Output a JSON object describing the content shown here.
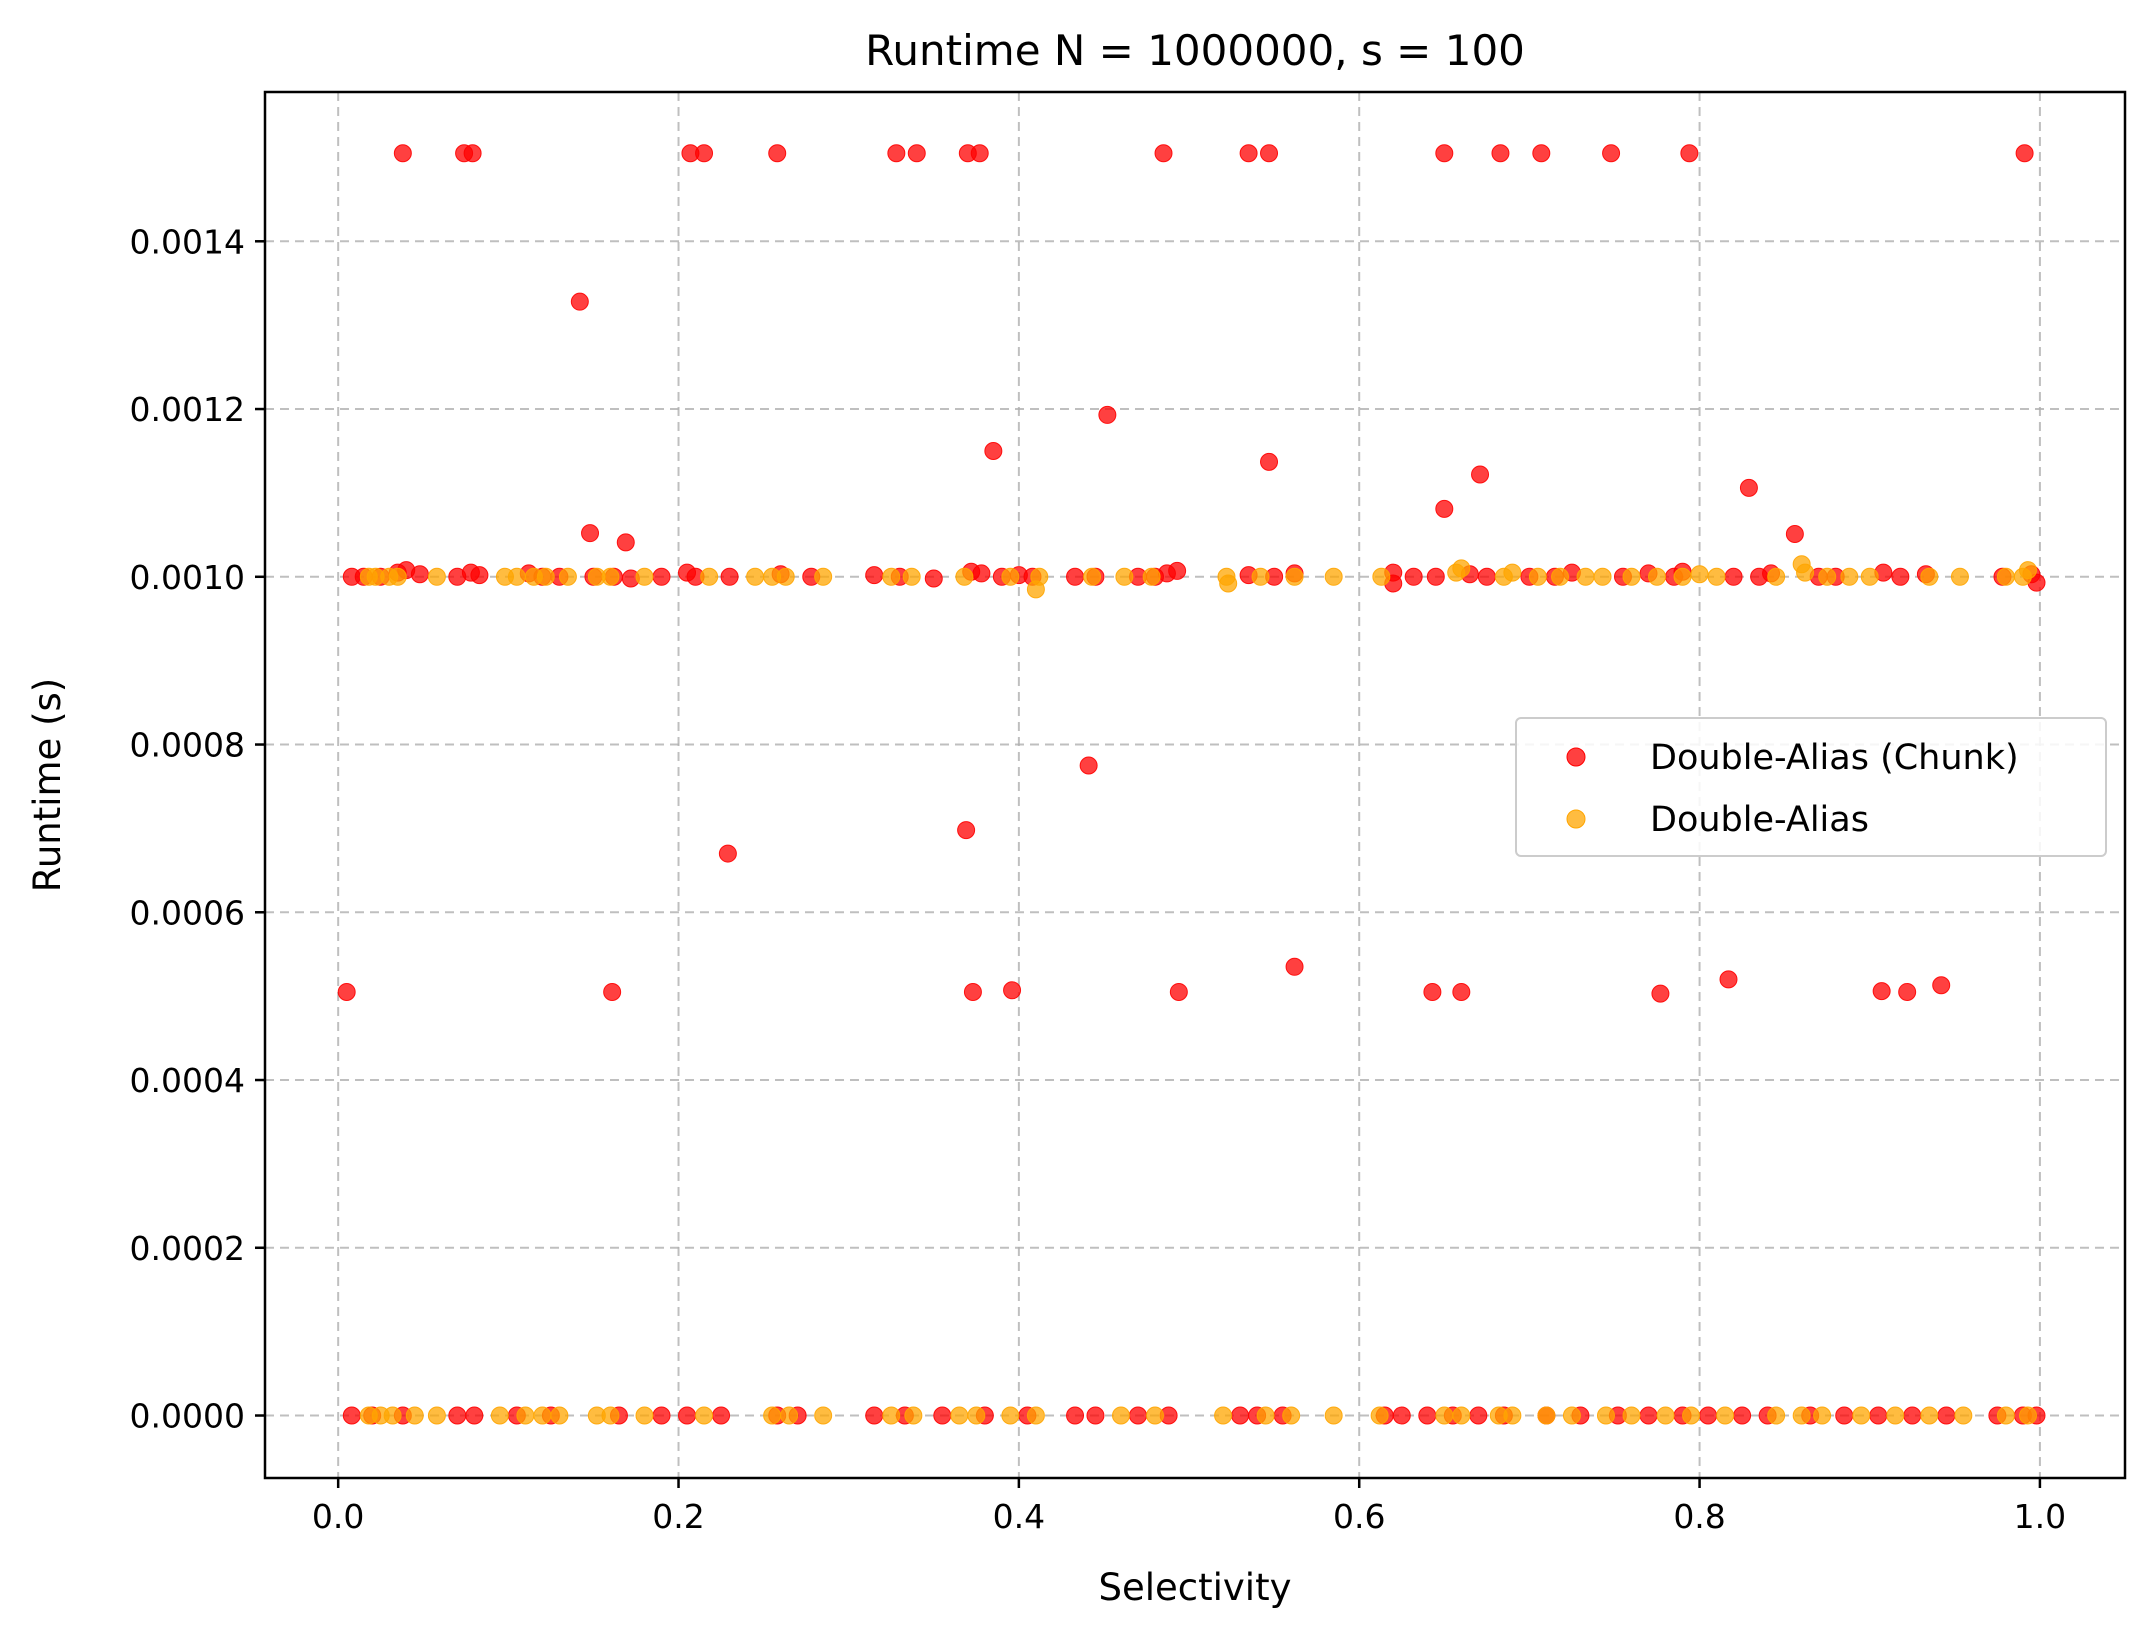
{
  "chart_data": {
    "type": "scatter",
    "title": "Runtime N = 1000000, s = 100",
    "xlabel": "Selectivity",
    "ylabel": "Runtime (s)",
    "xlim": [
      -0.043,
      1.05
    ],
    "ylim": [
      -7.45e-05,
      0.001578
    ],
    "xticks": [
      0.0,
      0.2,
      0.4,
      0.6,
      0.8,
      1.0
    ],
    "xtick_labels": [
      "0.0",
      "0.2",
      "0.4",
      "0.6",
      "0.8",
      "1.0"
    ],
    "yticks": [
      0.0,
      0.0002,
      0.0004,
      0.0006,
      0.0008,
      0.001,
      0.0012,
      0.0014
    ],
    "ytick_labels": [
      "0.0000",
      "0.0002",
      "0.0004",
      "0.0006",
      "0.0008",
      "0.0010",
      "0.0012",
      "0.0014"
    ],
    "grid": true,
    "legend_position": "center-right",
    "series": [
      {
        "name": "Double-Alias (Chunk)",
        "color": "#ff0000",
        "points": [
          [
            0.038,
            0.001505
          ],
          [
            0.074,
            0.001505
          ],
          [
            0.079,
            0.001505
          ],
          [
            0.207,
            0.001505
          ],
          [
            0.215,
            0.001505
          ],
          [
            0.258,
            0.001505
          ],
          [
            0.328,
            0.001505
          ],
          [
            0.34,
            0.001505
          ],
          [
            0.37,
            0.001505
          ],
          [
            0.377,
            0.001505
          ],
          [
            0.485,
            0.001505
          ],
          [
            0.535,
            0.001505
          ],
          [
            0.547,
            0.001505
          ],
          [
            0.65,
            0.001505
          ],
          [
            0.683,
            0.001505
          ],
          [
            0.707,
            0.001505
          ],
          [
            0.748,
            0.001505
          ],
          [
            0.794,
            0.001505
          ],
          [
            0.991,
            0.001505
          ],
          [
            0.142,
            0.001328
          ],
          [
            0.452,
            0.001193
          ],
          [
            0.385,
            0.00115
          ],
          [
            0.547,
            0.001137
          ],
          [
            0.671,
            0.001122
          ],
          [
            0.829,
            0.001106
          ],
          [
            0.65,
            0.001081
          ],
          [
            0.148,
            0.001052
          ],
          [
            0.169,
            0.001041
          ],
          [
            0.856,
            0.001051
          ],
          [
            0.441,
            0.000775
          ],
          [
            0.369,
            0.000698
          ],
          [
            0.229,
            0.00067
          ],
          [
            0.005,
            0.000505
          ],
          [
            0.161,
            0.000505
          ],
          [
            0.373,
            0.000505
          ],
          [
            0.396,
            0.000507
          ],
          [
            0.494,
            0.000505
          ],
          [
            0.562,
            0.000535
          ],
          [
            0.643,
            0.000505
          ],
          [
            0.66,
            0.000505
          ],
          [
            0.777,
            0.000503
          ],
          [
            0.817,
            0.00052
          ],
          [
            0.907,
            0.000506
          ],
          [
            0.922,
            0.000505
          ],
          [
            0.942,
            0.000513
          ],
          [
            0.008,
            0.001
          ],
          [
            0.015,
            0.001
          ],
          [
            0.025,
            0.001
          ],
          [
            0.035,
            0.001005
          ],
          [
            0.04,
            0.001008
          ],
          [
            0.048,
            0.001003
          ],
          [
            0.07,
            0.001
          ],
          [
            0.078,
            0.001005
          ],
          [
            0.083,
            0.001002
          ],
          [
            0.112,
            0.001004
          ],
          [
            0.12,
            0.001
          ],
          [
            0.13,
            0.001
          ],
          [
            0.15,
            0.001
          ],
          [
            0.162,
            0.001
          ],
          [
            0.172,
            0.000998
          ],
          [
            0.19,
            0.001
          ],
          [
            0.205,
            0.001005
          ],
          [
            0.21,
            0.001
          ],
          [
            0.23,
            0.001
          ],
          [
            0.26,
            0.001003
          ],
          [
            0.278,
            0.001
          ],
          [
            0.315,
            0.001002
          ],
          [
            0.33,
            0.001
          ],
          [
            0.35,
            0.000998
          ],
          [
            0.372,
            0.001006
          ],
          [
            0.378,
            0.001004
          ],
          [
            0.39,
            0.001
          ],
          [
            0.4,
            0.001002
          ],
          [
            0.408,
            0.001
          ],
          [
            0.433,
            0.001
          ],
          [
            0.445,
            0.001
          ],
          [
            0.47,
            0.001
          ],
          [
            0.48,
            0.001
          ],
          [
            0.487,
            0.001004
          ],
          [
            0.493,
            0.001007
          ],
          [
            0.535,
            0.001002
          ],
          [
            0.55,
            0.001
          ],
          [
            0.562,
            0.001004
          ],
          [
            0.62,
            0.001005
          ],
          [
            0.632,
            0.001
          ],
          [
            0.645,
            0.001
          ],
          [
            0.665,
            0.001003
          ],
          [
            0.675,
            0.001
          ],
          [
            0.7,
            0.001
          ],
          [
            0.715,
            0.001
          ],
          [
            0.725,
            0.001005
          ],
          [
            0.755,
            0.001
          ],
          [
            0.77,
            0.001004
          ],
          [
            0.785,
            0.001
          ],
          [
            0.79,
            0.001006
          ],
          [
            0.82,
            0.001
          ],
          [
            0.835,
            0.001
          ],
          [
            0.842,
            0.001004
          ],
          [
            0.87,
            0.001
          ],
          [
            0.88,
            0.001
          ],
          [
            0.908,
            0.001005
          ],
          [
            0.918,
            0.001
          ],
          [
            0.933,
            0.001003
          ],
          [
            0.978,
            0.001
          ],
          [
            0.995,
            0.001003
          ],
          [
            0.998,
            0.000993
          ],
          [
            0.62,
            0.000992
          ],
          [
            0.008,
            0.0
          ],
          [
            0.02,
            0.0
          ],
          [
            0.038,
            0.0
          ],
          [
            0.07,
            0.0
          ],
          [
            0.08,
            0.0
          ],
          [
            0.105,
            0.0
          ],
          [
            0.125,
            0.0
          ],
          [
            0.165,
            0.0
          ],
          [
            0.19,
            0.0
          ],
          [
            0.205,
            0.0
          ],
          [
            0.225,
            0.0
          ],
          [
            0.258,
            0.0
          ],
          [
            0.27,
            0.0
          ],
          [
            0.315,
            0.0
          ],
          [
            0.333,
            0.0
          ],
          [
            0.355,
            0.0
          ],
          [
            0.38,
            0.0
          ],
          [
            0.405,
            0.0
          ],
          [
            0.433,
            0.0
          ],
          [
            0.445,
            0.0
          ],
          [
            0.47,
            0.0
          ],
          [
            0.488,
            0.0
          ],
          [
            0.53,
            0.0
          ],
          [
            0.54,
            0.0
          ],
          [
            0.555,
            0.0
          ],
          [
            0.615,
            0.0
          ],
          [
            0.625,
            0.0
          ],
          [
            0.64,
            0.0
          ],
          [
            0.655,
            0.0
          ],
          [
            0.67,
            0.0
          ],
          [
            0.685,
            0.0
          ],
          [
            0.71,
            0.0
          ],
          [
            0.73,
            0.0
          ],
          [
            0.752,
            0.0
          ],
          [
            0.77,
            0.0
          ],
          [
            0.79,
            0.0
          ],
          [
            0.805,
            0.0
          ],
          [
            0.825,
            0.0
          ],
          [
            0.84,
            0.0
          ],
          [
            0.865,
            0.0
          ],
          [
            0.885,
            0.0
          ],
          [
            0.905,
            0.0
          ],
          [
            0.925,
            0.0
          ],
          [
            0.945,
            0.0
          ],
          [
            0.975,
            0.0
          ],
          [
            0.99,
            0.0
          ],
          [
            0.998,
            0.0
          ]
        ]
      },
      {
        "name": "Double-Alias",
        "color": "#ffa500",
        "points": [
          [
            0.018,
            0.001
          ],
          [
            0.022,
            0.001
          ],
          [
            0.03,
            0.001
          ],
          [
            0.035,
            0.001
          ],
          [
            0.058,
            0.001
          ],
          [
            0.098,
            0.001
          ],
          [
            0.105,
            0.001
          ],
          [
            0.115,
            0.001
          ],
          [
            0.122,
            0.001
          ],
          [
            0.135,
            0.001
          ],
          [
            0.152,
            0.001
          ],
          [
            0.16,
            0.001
          ],
          [
            0.18,
            0.001
          ],
          [
            0.218,
            0.001
          ],
          [
            0.245,
            0.001
          ],
          [
            0.255,
            0.001
          ],
          [
            0.263,
            0.001
          ],
          [
            0.285,
            0.001
          ],
          [
            0.325,
            0.001
          ],
          [
            0.337,
            0.001
          ],
          [
            0.368,
            0.001
          ],
          [
            0.395,
            0.001
          ],
          [
            0.41,
            0.000985
          ],
          [
            0.412,
            0.001
          ],
          [
            0.443,
            0.001
          ],
          [
            0.462,
            0.001
          ],
          [
            0.478,
            0.001
          ],
          [
            0.522,
            0.001
          ],
          [
            0.523,
            0.000992
          ],
          [
            0.542,
            0.001
          ],
          [
            0.562,
            0.001
          ],
          [
            0.585,
            0.001
          ],
          [
            0.613,
            0.001
          ],
          [
            0.657,
            0.001005
          ],
          [
            0.66,
            0.00101
          ],
          [
            0.685,
            0.001
          ],
          [
            0.69,
            0.001005
          ],
          [
            0.705,
            0.001
          ],
          [
            0.718,
            0.001
          ],
          [
            0.733,
            0.001
          ],
          [
            0.743,
            0.001
          ],
          [
            0.76,
            0.001
          ],
          [
            0.775,
            0.001
          ],
          [
            0.79,
            0.001
          ],
          [
            0.8,
            0.001003
          ],
          [
            0.81,
            0.001
          ],
          [
            0.845,
            0.001
          ],
          [
            0.86,
            0.001015
          ],
          [
            0.862,
            0.001005
          ],
          [
            0.875,
            0.001
          ],
          [
            0.888,
            0.001
          ],
          [
            0.9,
            0.001
          ],
          [
            0.935,
            0.001
          ],
          [
            0.953,
            0.001
          ],
          [
            0.98,
            0.001
          ],
          [
            0.99,
            0.001
          ],
          [
            0.993,
            0.001008
          ],
          [
            0.018,
            0.0
          ],
          [
            0.025,
            0.0
          ],
          [
            0.032,
            0.0
          ],
          [
            0.045,
            0.0
          ],
          [
            0.058,
            0.0
          ],
          [
            0.095,
            0.0
          ],
          [
            0.11,
            0.0
          ],
          [
            0.12,
            0.0
          ],
          [
            0.13,
            0.0
          ],
          [
            0.152,
            0.0
          ],
          [
            0.16,
            0.0
          ],
          [
            0.18,
            0.0
          ],
          [
            0.215,
            0.0
          ],
          [
            0.255,
            0.0
          ],
          [
            0.265,
            0.0
          ],
          [
            0.285,
            0.0
          ],
          [
            0.325,
            0.0
          ],
          [
            0.338,
            0.0
          ],
          [
            0.365,
            0.0
          ],
          [
            0.375,
            0.0
          ],
          [
            0.395,
            0.0
          ],
          [
            0.41,
            0.0
          ],
          [
            0.46,
            0.0
          ],
          [
            0.48,
            0.0
          ],
          [
            0.52,
            0.0
          ],
          [
            0.545,
            0.0
          ],
          [
            0.56,
            0.0
          ],
          [
            0.585,
            0.0
          ],
          [
            0.612,
            0.0
          ],
          [
            0.65,
            0.0
          ],
          [
            0.66,
            0.0
          ],
          [
            0.682,
            0.0
          ],
          [
            0.69,
            0.0
          ],
          [
            0.71,
            0.0
          ],
          [
            0.725,
            0.0
          ],
          [
            0.745,
            0.0
          ],
          [
            0.76,
            0.0
          ],
          [
            0.78,
            0.0
          ],
          [
            0.795,
            0.0
          ],
          [
            0.815,
            0.0
          ],
          [
            0.845,
            0.0
          ],
          [
            0.86,
            0.0
          ],
          [
            0.872,
            0.0
          ],
          [
            0.895,
            0.0
          ],
          [
            0.915,
            0.0
          ],
          [
            0.935,
            0.0
          ],
          [
            0.955,
            0.0
          ],
          [
            0.98,
            0.0
          ],
          [
            0.993,
            0.0
          ]
        ]
      }
    ]
  }
}
